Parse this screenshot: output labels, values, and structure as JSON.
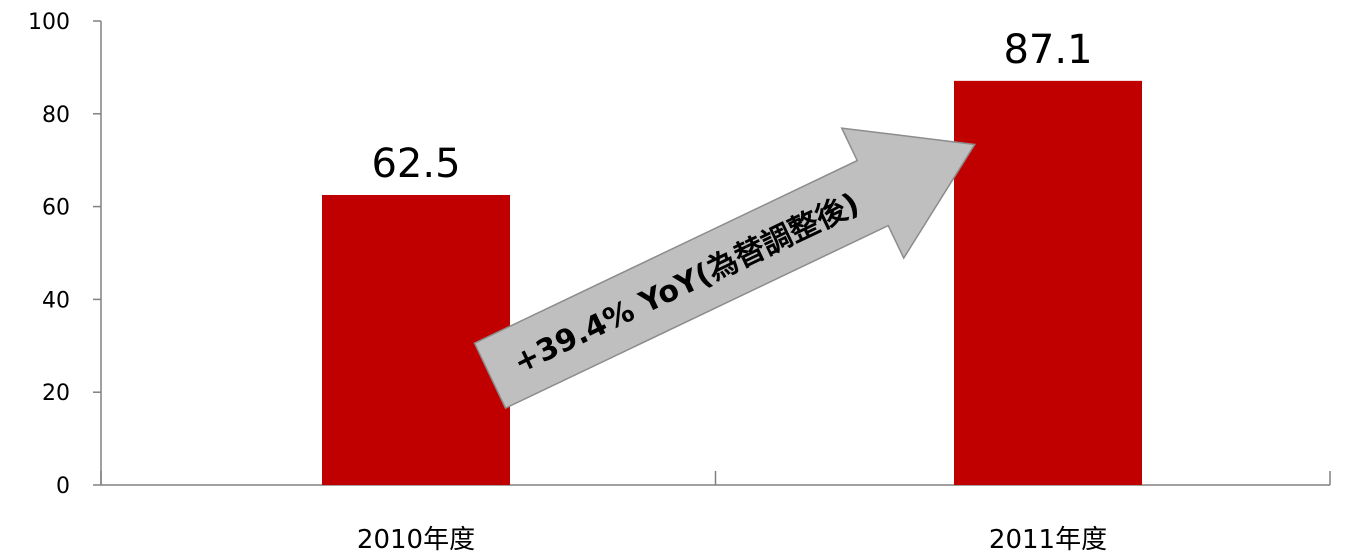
{
  "chart_data": {
    "type": "bar",
    "categories": [
      "2010年度",
      "2011年度"
    ],
    "values": [
      62.5,
      87.1
    ],
    "data_labels": [
      "62.5",
      "87.1"
    ],
    "ylim": [
      0,
      100
    ],
    "yticks": [
      "0",
      "20",
      "40",
      "60",
      "80",
      "100"
    ],
    "title": "",
    "xlabel": "",
    "ylabel": "",
    "grid": false,
    "bar_color": "#c00000",
    "annotation": {
      "text": "+39.4% YoY(為替調整後)",
      "arrow_color": "#bfbfbf"
    }
  }
}
